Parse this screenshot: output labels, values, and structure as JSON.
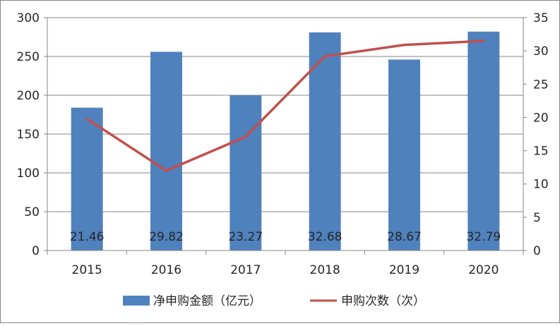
{
  "chart_data": {
    "type": "bar",
    "categories": [
      "2015",
      "2016",
      "2017",
      "2018",
      "2019",
      "2020"
    ],
    "series": [
      {
        "name": "净申购金额（亿元）",
        "type": "bar",
        "axis": "left",
        "color": "#4F81BD",
        "values": [
          184,
          256,
          200,
          281,
          246,
          282
        ]
      },
      {
        "name": "申购次数（次）",
        "type": "line",
        "axis": "right",
        "color": "#C0504D",
        "values": [
          19.8,
          12,
          17.1,
          29.2,
          30.9,
          31.5
        ]
      }
    ],
    "data_labels": [
      "21.46",
      "29.82",
      "23.27",
      "32.68",
      "28.67",
      "32.79"
    ],
    "y_left": {
      "min": 0,
      "max": 300,
      "ticks": [
        "0",
        "50",
        "100",
        "150",
        "200",
        "250",
        "300"
      ]
    },
    "y_right": {
      "min": 0,
      "max": 35,
      "ticks": [
        "0",
        "5",
        "10",
        "15",
        "20",
        "25",
        "30",
        "35"
      ]
    },
    "grid": true,
    "legend": "bottom"
  }
}
